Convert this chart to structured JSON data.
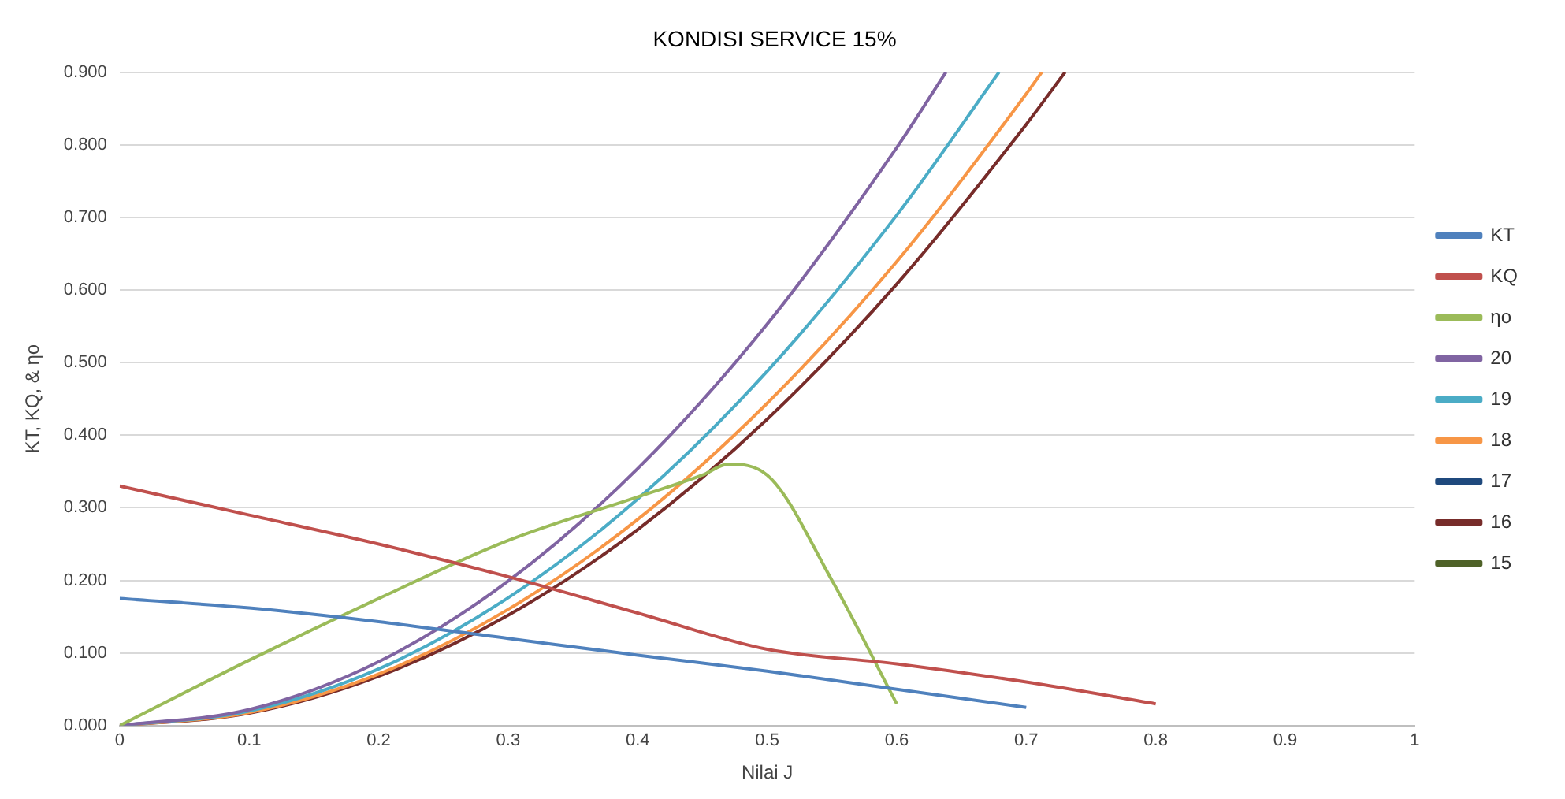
{
  "chart_data": {
    "type": "line",
    "title": "KONDISI SERVICE 15%",
    "xlabel": "Nilai J",
    "ylabel": "KT, KQ, & ηo",
    "xlim": [
      0,
      1
    ],
    "xticks": [
      0,
      0.1,
      0.2,
      0.3,
      0.4,
      0.5,
      0.6,
      0.7,
      0.8,
      0.9,
      1
    ],
    "ylim": [
      0,
      0.9
    ],
    "yticks": [
      {
        "value": 0,
        "label": "0.000"
      },
      {
        "value": 0.1,
        "label": "0.100"
      },
      {
        "value": 0.2,
        "label": "0.200"
      },
      {
        "value": 0.3,
        "label": "0.300"
      },
      {
        "value": 0.4,
        "label": "0.400"
      },
      {
        "value": 0.5,
        "label": "0.500"
      },
      {
        "value": 0.6,
        "label": "0.600"
      },
      {
        "value": 0.7,
        "label": "0.700"
      },
      {
        "value": 0.8,
        "label": "0.800"
      },
      {
        "value": 0.9,
        "label": "0.900"
      }
    ],
    "grid": "y",
    "legend": "right",
    "marker": "none",
    "line_style": "solid",
    "series": [
      {
        "name": "KT",
        "color": "#4f81bd",
        "x": [
          0,
          0.1,
          0.2,
          0.3,
          0.4,
          0.5,
          0.6,
          0.7
        ],
        "values": [
          0.175,
          0.162,
          0.143,
          0.12,
          0.097,
          0.075,
          0.05,
          0.025
        ]
      },
      {
        "name": "KQ",
        "color": "#c0504d",
        "x": [
          0,
          0.1,
          0.2,
          0.3,
          0.4,
          0.5,
          0.6,
          0.7,
          0.8
        ],
        "values": [
          0.33,
          0.29,
          0.25,
          0.205,
          0.155,
          0.105,
          0.085,
          0.06,
          0.03
        ]
      },
      {
        "name": "ηo",
        "color": "#9bbb59",
        "x": [
          0,
          0.1,
          0.2,
          0.3,
          0.4,
          0.45,
          0.47,
          0.5,
          0.55,
          0.6
        ],
        "values": [
          0,
          0.09,
          0.175,
          0.255,
          0.315,
          0.345,
          0.36,
          0.345,
          0.2,
          0.03
        ]
      },
      {
        "name": "20",
        "color": "#8064a2",
        "x": [
          0,
          0.1,
          0.2,
          0.3,
          0.4,
          0.5,
          0.6,
          0.638
        ],
        "values": [
          0,
          0.022,
          0.088,
          0.199,
          0.354,
          0.553,
          0.796,
          0.9
        ]
      },
      {
        "name": "19",
        "color": "#4bacc6",
        "x": [
          0,
          0.1,
          0.2,
          0.3,
          0.4,
          0.5,
          0.6,
          0.679
        ],
        "values": [
          0,
          0.02,
          0.078,
          0.176,
          0.312,
          0.488,
          0.703,
          0.9
        ]
      },
      {
        "name": "18",
        "color": "#f79646",
        "x": [
          0,
          0.1,
          0.2,
          0.3,
          0.4,
          0.5,
          0.6,
          0.7,
          0.712
        ],
        "values": [
          0,
          0.018,
          0.071,
          0.16,
          0.284,
          0.444,
          0.639,
          0.87,
          0.9
        ]
      },
      {
        "name": "17",
        "color": "#1f497d"
      },
      {
        "name": "16",
        "color": "#772c2a",
        "x": [
          0,
          0.1,
          0.2,
          0.3,
          0.4,
          0.5,
          0.6,
          0.7,
          0.73
        ],
        "values": [
          0,
          0.017,
          0.068,
          0.152,
          0.27,
          0.422,
          0.608,
          0.828,
          0.9
        ]
      },
      {
        "name": "15",
        "color": "#4f6228"
      }
    ]
  }
}
